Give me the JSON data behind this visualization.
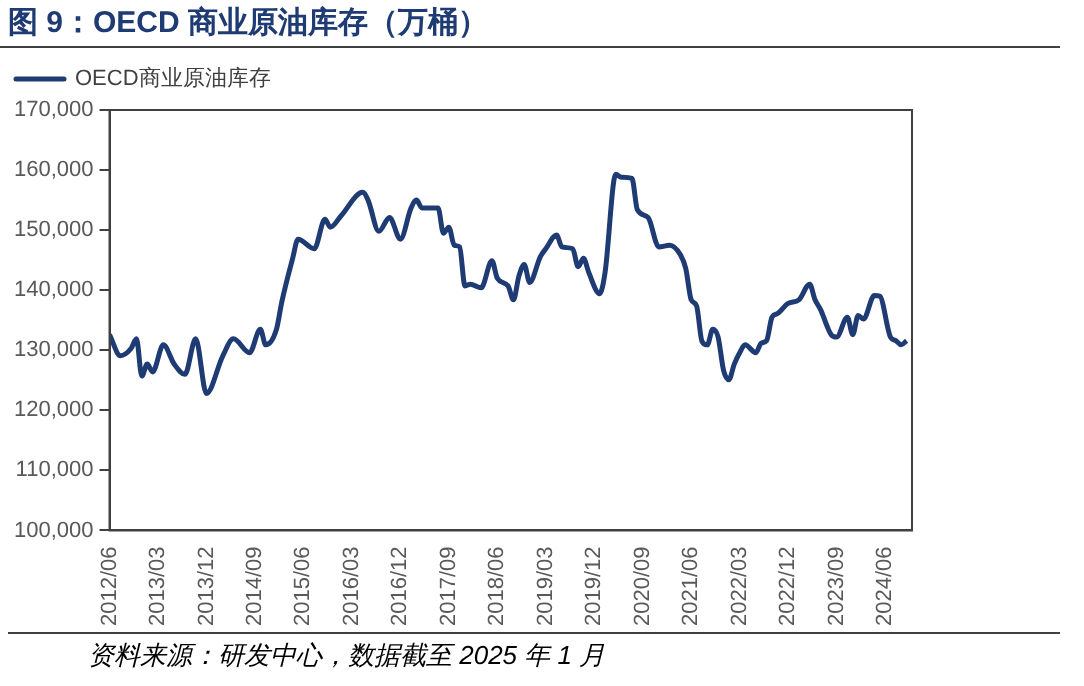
{
  "chart_data": {
    "type": "line",
    "title": "图 9：OECD 商业原油库存（万桶）",
    "annotations": [
      "资料来源：研发中心，数据截至 2025 年 1 月"
    ],
    "series": [
      {
        "name": "OECD商业原油库存",
        "color": "#1f3b73",
        "x": [
          "2012-06",
          "2012-08",
          "2012-10",
          "2012-11",
          "2012-12",
          "2013-01",
          "2013-02",
          "2013-04",
          "2013-06",
          "2013-08",
          "2013-10",
          "2013-12",
          "2014-03",
          "2014-05",
          "2014-08",
          "2014-10",
          "2014-11",
          "2015-01",
          "2015-02",
          "2015-04",
          "2015-05",
          "2015-08",
          "2015-10",
          "2015-11",
          "2016-01",
          "2016-05",
          "2016-06",
          "2016-08",
          "2016-10",
          "2016-12",
          "2017-02",
          "2017-03",
          "2017-04",
          "2017-07",
          "2017-08",
          "2017-09",
          "2017-10",
          "2017-11",
          "2017-12",
          "2018-01",
          "2018-03",
          "2018-05",
          "2018-06",
          "2018-08",
          "2018-09",
          "2018-10",
          "2018-11",
          "2018-12",
          "2019-02",
          "2019-03",
          "2019-05",
          "2019-06",
          "2019-08",
          "2019-09",
          "2019-10",
          "2019-11",
          "2020-01",
          "2020-02",
          "2020-04",
          "2020-05",
          "2020-07",
          "2020-08",
          "2020-10",
          "2020-12",
          "2021-02",
          "2021-04",
          "2021-05",
          "2021-06",
          "2021-07",
          "2021-08",
          "2021-09",
          "2021-10",
          "2021-11",
          "2021-12",
          "2022-01",
          "2022-02",
          "2022-03",
          "2022-04",
          "2022-06",
          "2022-07",
          "2022-08",
          "2022-09",
          "2022-10",
          "2022-12",
          "2023-02",
          "2023-04",
          "2023-05",
          "2023-06",
          "2023-08",
          "2023-09",
          "2023-11",
          "2023-12",
          "2024-01",
          "2024-02",
          "2024-04",
          "2024-05",
          "2024-07",
          "2024-08",
          "2024-09",
          "2024-10"
        ],
        "values": [
          132600,
          129100,
          130300,
          131900,
          125700,
          127700,
          126400,
          130900,
          127700,
          126000,
          131900,
          122800,
          129000,
          131900,
          129600,
          133500,
          130900,
          133500,
          138100,
          145300,
          148500,
          146900,
          151800,
          150500,
          152400,
          156300,
          155000,
          149800,
          152100,
          148500,
          153700,
          155000,
          153700,
          153700,
          149500,
          150500,
          147500,
          147200,
          140700,
          141000,
          140400,
          144900,
          142000,
          140700,
          138400,
          142300,
          144300,
          141300,
          145600,
          146900,
          149200,
          147200,
          146900,
          143900,
          145300,
          142900,
          139400,
          142900,
          159300,
          158800,
          158600,
          153400,
          152100,
          147200,
          147500,
          145900,
          143600,
          138400,
          137400,
          131500,
          130900,
          133500,
          132200,
          126700,
          125100,
          127700,
          129600,
          130900,
          129600,
          131200,
          131600,
          135500,
          136100,
          137800,
          138400,
          141000,
          138400,
          136800,
          132600,
          132200,
          135500,
          132600,
          135800,
          135200,
          139100,
          139000,
          132200,
          131600,
          130900,
          131600
        ]
      }
    ],
    "xlim": [
      "2012-06",
      "2024-11"
    ],
    "xticks": [
      {
        "value": "2012-06",
        "label": "2012/06"
      },
      {
        "value": "2013-03",
        "label": "2013/03"
      },
      {
        "value": "2013-12",
        "label": "2013/12"
      },
      {
        "value": "2014-09",
        "label": "2014/09"
      },
      {
        "value": "2015-06",
        "label": "2015/06"
      },
      {
        "value": "2016-03",
        "label": "2016/03"
      },
      {
        "value": "2016-12",
        "label": "2016/12"
      },
      {
        "value": "2017-09",
        "label": "2017/09"
      },
      {
        "value": "2018-06",
        "label": "2018/06"
      },
      {
        "value": "2019-03",
        "label": "2019/03"
      },
      {
        "value": "2019-12",
        "label": "2019/12"
      },
      {
        "value": "2020-09",
        "label": "2020/09"
      },
      {
        "value": "2021-06",
        "label": "2021/06"
      },
      {
        "value": "2022-03",
        "label": "2022/03"
      },
      {
        "value": "2022-12",
        "label": "2022/12"
      },
      {
        "value": "2023-09",
        "label": "2023/09"
      },
      {
        "value": "2024-06",
        "label": "2024/06"
      }
    ],
    "ylim": [
      100000,
      170000
    ],
    "yticks": [
      {
        "value": 100000,
        "label": "100,000"
      },
      {
        "value": 110000,
        "label": "110,000"
      },
      {
        "value": 120000,
        "label": "120,000"
      },
      {
        "value": 130000,
        "label": "130,000"
      },
      {
        "value": 140000,
        "label": "140,000"
      },
      {
        "value": 150000,
        "label": "150,000"
      },
      {
        "value": 160000,
        "label": "160,000"
      },
      {
        "value": 170000,
        "label": "170,000"
      }
    ],
    "grid": false,
    "legend": "top left",
    "marker": "none",
    "line_style": "solid"
  }
}
